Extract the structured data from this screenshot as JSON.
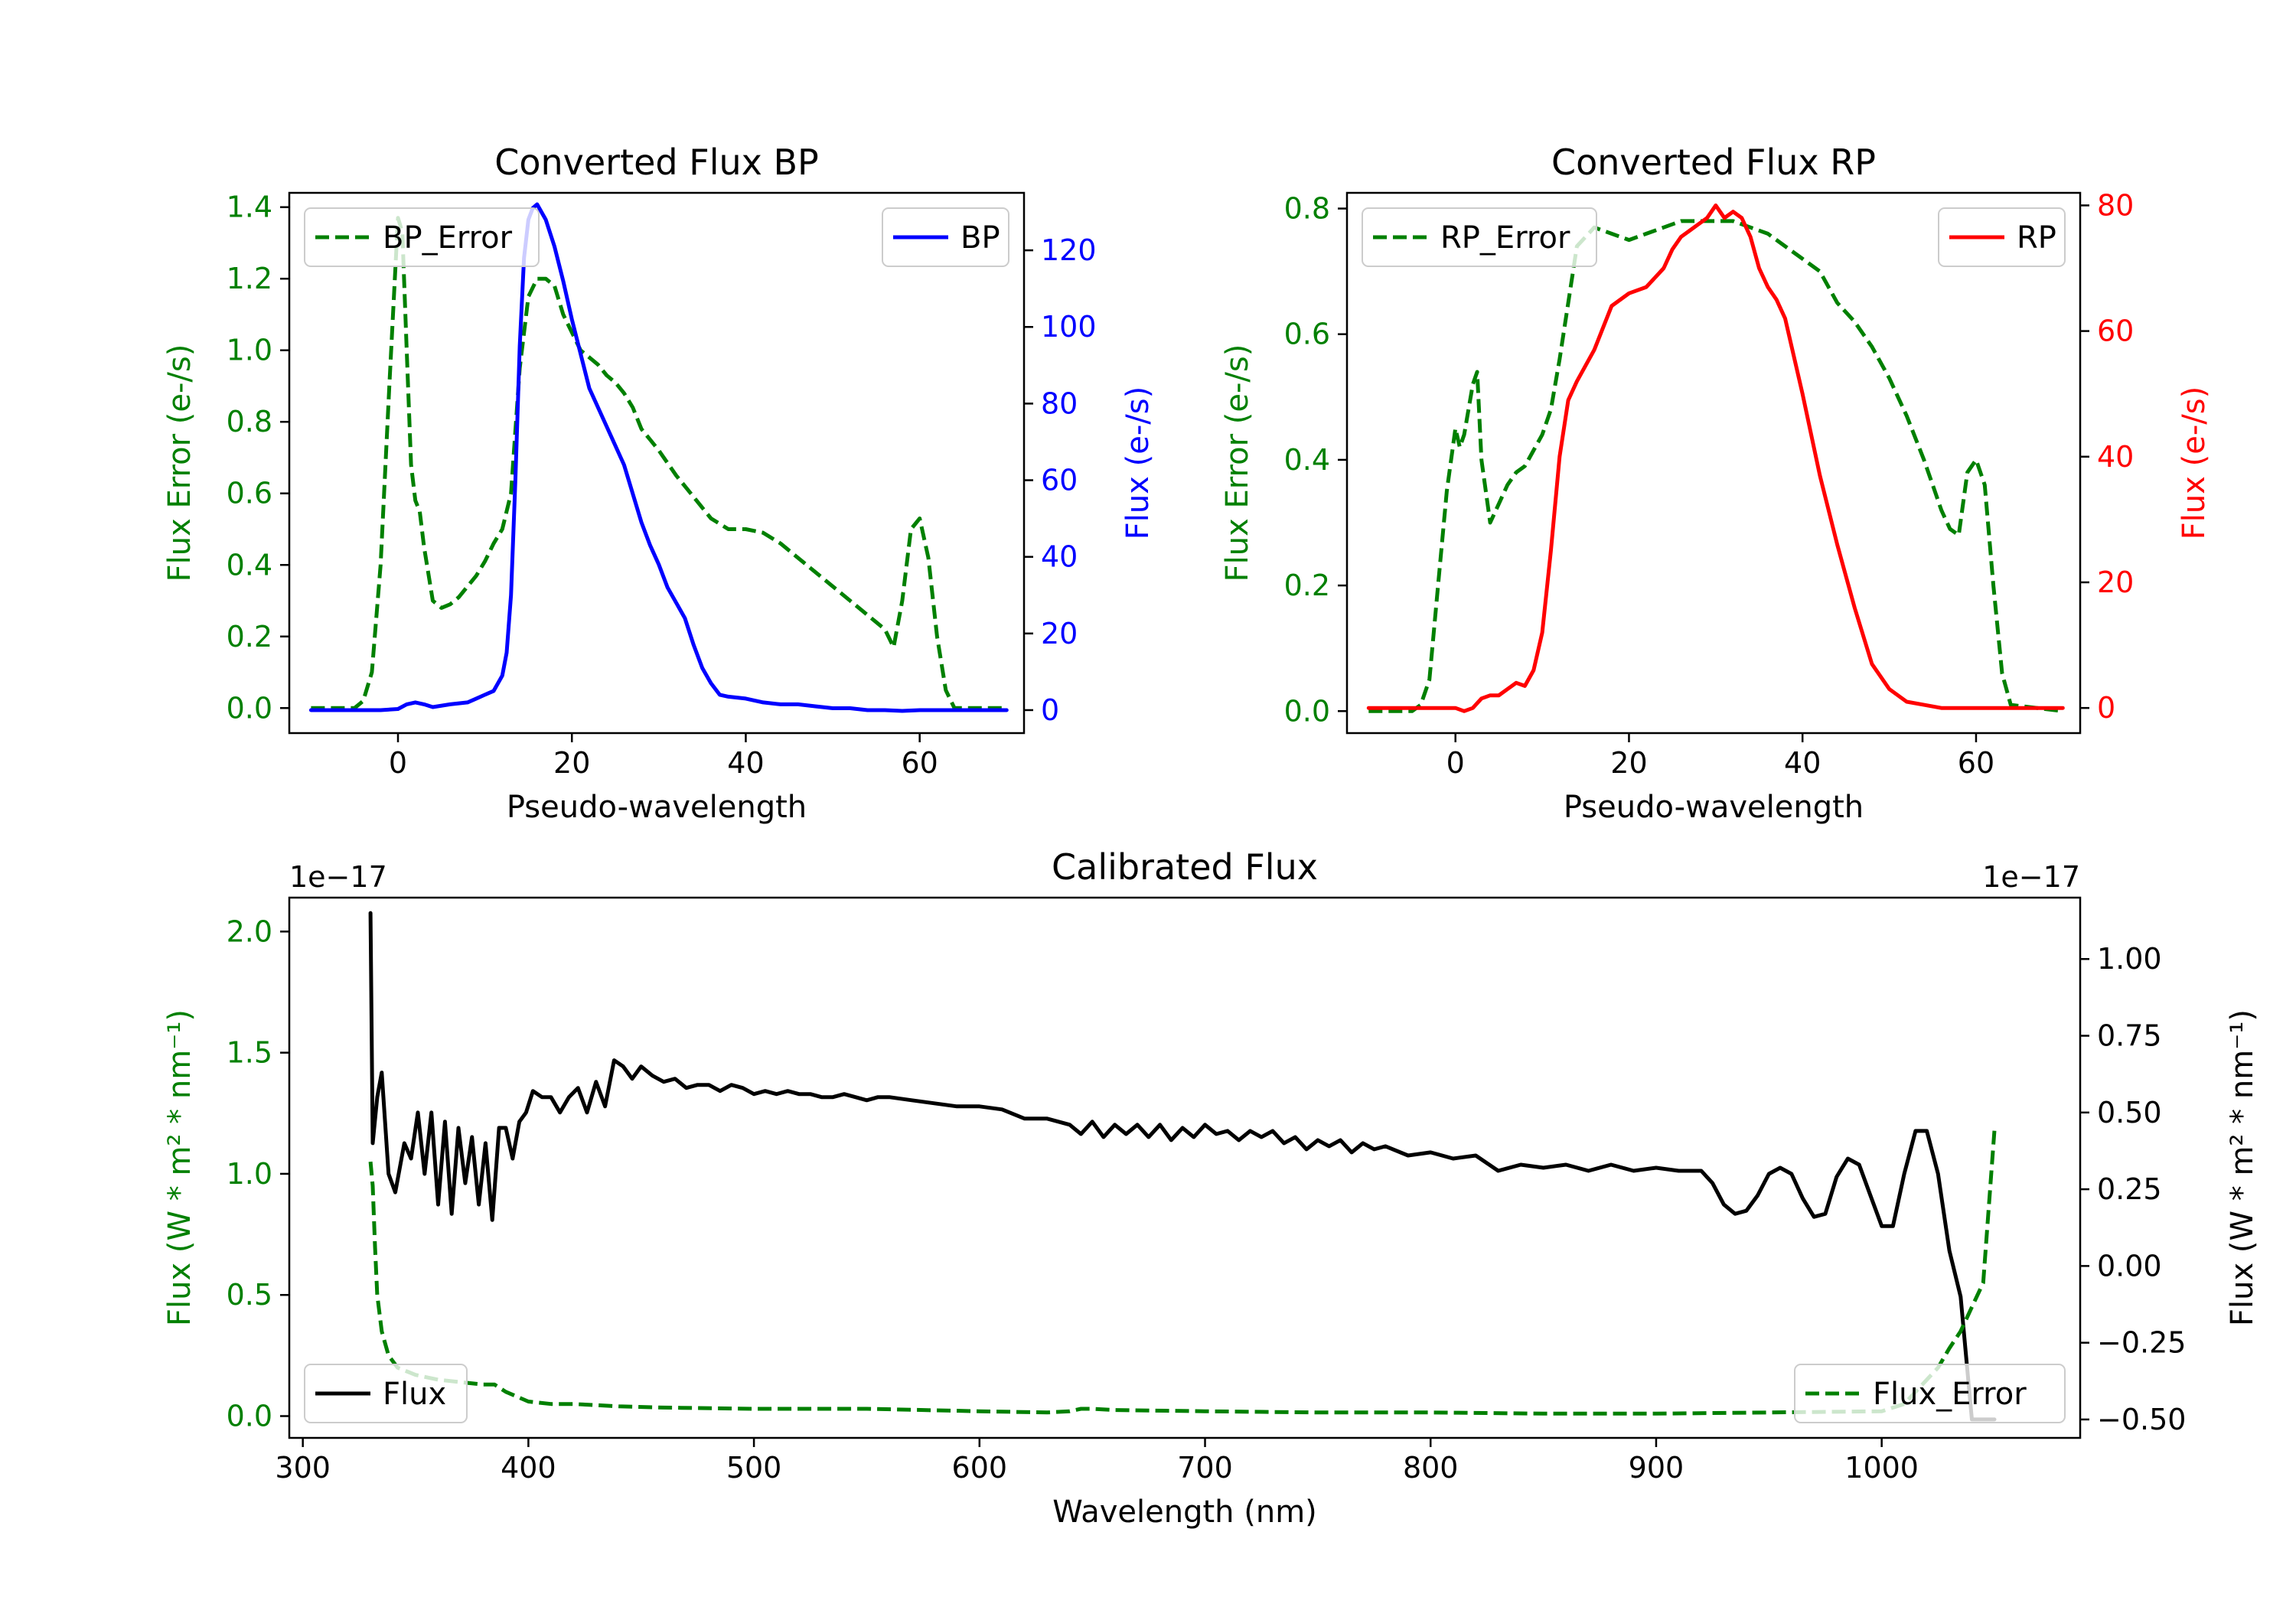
{
  "chart_data": [
    {
      "id": "bp",
      "type": "line",
      "title": "Converted Flux BP",
      "xlabel": "Pseudo-wavelength",
      "xlim": [
        -12.5,
        72
      ],
      "xticks": [
        0,
        20,
        40,
        60
      ],
      "y_left": {
        "label": "Flux Error (e-/s)",
        "color": "#008000",
        "lim": [
          -0.07,
          1.44
        ],
        "ticks": [
          0.0,
          0.2,
          0.4,
          0.6,
          0.8,
          1.0,
          1.2,
          1.4
        ],
        "decimals": 1
      },
      "y_right": {
        "label": "Flux (e-/s)",
        "color": "#0000ff",
        "lim": [
          -6,
          135
        ],
        "ticks": [
          0,
          20,
          40,
          60,
          80,
          100,
          120
        ],
        "decimals": 0
      },
      "series": [
        {
          "name": "BP_Error",
          "axis": "left",
          "color": "#008000",
          "dash": true,
          "x": [
            -10,
            -5,
            -4,
            -3,
            -2,
            -1,
            0,
            0.5,
            1,
            1.5,
            2,
            2.5,
            3,
            4,
            5,
            6,
            7,
            8,
            9,
            10,
            11,
            12,
            13,
            14,
            15,
            16,
            17,
            18,
            19,
            20,
            21,
            22,
            23,
            24,
            25,
            26,
            27,
            28,
            29,
            30,
            32,
            34,
            36,
            38,
            40,
            42,
            44,
            46,
            48,
            50,
            52,
            54,
            55,
            56,
            57,
            58,
            59,
            60,
            61,
            62,
            63,
            64,
            65,
            66,
            70
          ],
          "y": [
            0.0,
            0.0,
            0.02,
            0.1,
            0.4,
            0.9,
            1.37,
            1.33,
            1.0,
            0.68,
            0.58,
            0.55,
            0.45,
            0.3,
            0.28,
            0.29,
            0.31,
            0.34,
            0.37,
            0.41,
            0.46,
            0.5,
            0.6,
            0.95,
            1.15,
            1.2,
            1.2,
            1.18,
            1.1,
            1.05,
            1.0,
            0.98,
            0.96,
            0.93,
            0.91,
            0.88,
            0.84,
            0.78,
            0.75,
            0.72,
            0.65,
            0.59,
            0.53,
            0.5,
            0.5,
            0.49,
            0.46,
            0.42,
            0.38,
            0.34,
            0.3,
            0.26,
            0.24,
            0.22,
            0.17,
            0.3,
            0.5,
            0.53,
            0.42,
            0.2,
            0.05,
            0.0,
            0.0,
            0.0,
            0.0
          ]
        },
        {
          "name": "BP",
          "axis": "right",
          "color": "#0000ff",
          "dash": false,
          "x": [
            -10,
            -2,
            0,
            1,
            2,
            3,
            4,
            6,
            8,
            9,
            10,
            11,
            12,
            12.5,
            13,
            13.5,
            14,
            14.5,
            15,
            15.5,
            16,
            17,
            18,
            19,
            20,
            21,
            22,
            24,
            26,
            28,
            29,
            30,
            31,
            32,
            33,
            34,
            35,
            36,
            37,
            38,
            40,
            42,
            44,
            46,
            48,
            50,
            52,
            54,
            56,
            58,
            60,
            62,
            70
          ],
          "y": [
            0,
            0,
            0.3,
            1.5,
            2,
            1.5,
            0.8,
            1.5,
            2,
            3,
            4,
            5,
            9,
            15,
            30,
            60,
            95,
            118,
            128,
            131,
            132,
            128,
            121,
            112,
            102,
            93,
            84,
            74,
            64,
            49,
            43,
            38,
            32,
            28,
            24,
            17,
            11,
            7,
            4,
            3.5,
            3,
            2,
            1.5,
            1.5,
            1,
            0.5,
            0.5,
            0,
            0,
            -0.2,
            0,
            0,
            0
          ]
        }
      ],
      "legends": [
        {
          "position": "upper left",
          "label": "BP_Error"
        },
        {
          "position": "upper right",
          "label": "BP"
        }
      ]
    },
    {
      "id": "rp",
      "type": "line",
      "title": "Converted Flux RP",
      "xlabel": "Pseudo-wavelength",
      "xlim": [
        -12.5,
        72
      ],
      "xticks": [
        0,
        20,
        40,
        60
      ],
      "y_left": {
        "label": "Flux Error (e-/s)",
        "color": "#008000",
        "lim": [
          -0.035,
          0.825
        ],
        "ticks": [
          0.0,
          0.2,
          0.4,
          0.6,
          0.8
        ],
        "decimals": 1
      },
      "y_right": {
        "label": "Flux (e-/s)",
        "color": "#ff0000",
        "lim": [
          -4,
          82
        ],
        "ticks": [
          0,
          20,
          40,
          60,
          80
        ],
        "decimals": 0
      },
      "series": [
        {
          "name": "RP_Error",
          "axis": "left",
          "color": "#008000",
          "dash": true,
          "x": [
            -10,
            -5,
            -4,
            -3,
            -2,
            -1,
            0,
            0.5,
            1,
            2,
            2.5,
            3,
            4,
            5,
            6,
            7,
            8,
            10,
            11,
            12,
            13,
            14,
            16,
            18,
            20,
            22,
            24,
            26,
            28,
            30,
            32,
            34,
            36,
            38,
            40,
            42,
            44,
            46,
            48,
            50,
            52,
            54,
            55,
            56,
            57,
            58,
            59,
            60,
            61,
            62,
            63,
            64,
            70
          ],
          "y": [
            0.0,
            0.0,
            0.01,
            0.05,
            0.2,
            0.35,
            0.45,
            0.42,
            0.44,
            0.52,
            0.54,
            0.4,
            0.3,
            0.33,
            0.36,
            0.38,
            0.39,
            0.44,
            0.48,
            0.56,
            0.65,
            0.74,
            0.77,
            0.76,
            0.75,
            0.76,
            0.77,
            0.78,
            0.78,
            0.78,
            0.78,
            0.77,
            0.76,
            0.74,
            0.72,
            0.7,
            0.65,
            0.62,
            0.58,
            0.53,
            0.47,
            0.4,
            0.36,
            0.32,
            0.29,
            0.28,
            0.38,
            0.4,
            0.36,
            0.2,
            0.06,
            0.01,
            0.0
          ]
        },
        {
          "name": "RP",
          "axis": "right",
          "color": "#ff0000",
          "dash": false,
          "x": [
            -10,
            -4,
            -2,
            0,
            1,
            2,
            3,
            4,
            5,
            6,
            7,
            8,
            9,
            10,
            11,
            12,
            13,
            14,
            16,
            18,
            20,
            22,
            24,
            25,
            26,
            27,
            28,
            29,
            30,
            31,
            32,
            33,
            34,
            35,
            36,
            37,
            38,
            40,
            42,
            44,
            46,
            48,
            50,
            52,
            54,
            56,
            60,
            70
          ],
          "y": [
            0,
            0,
            0,
            0,
            -0.5,
            0,
            1.5,
            2,
            2,
            3,
            4,
            3.5,
            6,
            12,
            25,
            40,
            49,
            52,
            57,
            64,
            66,
            67,
            70,
            73,
            75,
            76,
            77,
            78,
            80,
            78,
            79,
            78,
            75,
            70,
            67,
            65,
            62,
            50,
            37,
            26,
            16,
            7,
            3,
            1,
            0.5,
            0,
            0,
            0
          ]
        }
      ],
      "legends": [
        {
          "position": "upper left",
          "label": "RP_Error"
        },
        {
          "position": "upper right",
          "label": "RP"
        }
      ]
    },
    {
      "id": "cal",
      "type": "line",
      "title": "Calibrated Flux",
      "xlabel": "Wavelength (nm)",
      "xlim": [
        294,
        1088
      ],
      "xticks": [
        300,
        400,
        500,
        600,
        700,
        800,
        900,
        1000
      ],
      "y_left": {
        "label": "Flux (W * m² * nm⁻¹)",
        "color": "#008000",
        "lim": [
          -0.09,
          2.14
        ],
        "ticks": [
          0.0,
          0.5,
          1.0,
          1.5,
          2.0
        ],
        "decimals": 1,
        "offset_text": "1e−17",
        "scale": "1e-17"
      },
      "y_right": {
        "label": "Flux (W * m² * nm⁻¹)",
        "color": "#000000",
        "lim": [
          -0.56,
          1.2
        ],
        "ticks": [
          -0.5,
          -0.25,
          0.0,
          0.25,
          0.5,
          0.75,
          1.0
        ],
        "decimals": 2,
        "offset_text": "1e−17",
        "scale": "1e-17"
      },
      "series": [
        {
          "name": "Flux",
          "axis": "right",
          "color": "#000000",
          "dash": false,
          "x": [
            330,
            331,
            333,
            335,
            338,
            341,
            345,
            348,
            351,
            354,
            357,
            360,
            363,
            366,
            369,
            372,
            375,
            378,
            381,
            384,
            387,
            390,
            393,
            396,
            399,
            402,
            406,
            410,
            414,
            418,
            422,
            426,
            430,
            434,
            438,
            442,
            446,
            450,
            455,
            460,
            465,
            470,
            475,
            480,
            485,
            490,
            495,
            500,
            505,
            510,
            515,
            520,
            525,
            530,
            535,
            540,
            545,
            550,
            555,
            560,
            570,
            580,
            590,
            600,
            610,
            620,
            630,
            640,
            645,
            650,
            655,
            660,
            665,
            670,
            675,
            680,
            685,
            690,
            695,
            700,
            705,
            710,
            715,
            720,
            725,
            730,
            735,
            740,
            745,
            750,
            755,
            760,
            765,
            770,
            775,
            780,
            790,
            800,
            810,
            820,
            830,
            840,
            850,
            860,
            870,
            880,
            890,
            900,
            910,
            920,
            925,
            930,
            935,
            940,
            945,
            950,
            955,
            960,
            965,
            970,
            975,
            980,
            985,
            990,
            995,
            1000,
            1005,
            1010,
            1015,
            1020,
            1025,
            1030,
            1035,
            1040,
            1050
          ],
          "y": [
            1.15,
            0.4,
            0.55,
            0.63,
            0.3,
            0.24,
            0.4,
            0.35,
            0.5,
            0.3,
            0.5,
            0.2,
            0.47,
            0.17,
            0.45,
            0.27,
            0.42,
            0.2,
            0.4,
            0.15,
            0.45,
            0.45,
            0.35,
            0.47,
            0.5,
            0.57,
            0.55,
            0.55,
            0.5,
            0.55,
            0.58,
            0.5,
            0.6,
            0.52,
            0.67,
            0.65,
            0.61,
            0.65,
            0.62,
            0.6,
            0.61,
            0.58,
            0.59,
            0.59,
            0.57,
            0.59,
            0.58,
            0.56,
            0.57,
            0.56,
            0.57,
            0.56,
            0.56,
            0.55,
            0.55,
            0.56,
            0.55,
            0.54,
            0.55,
            0.55,
            0.54,
            0.53,
            0.52,
            0.52,
            0.51,
            0.48,
            0.48,
            0.46,
            0.43,
            0.47,
            0.42,
            0.46,
            0.43,
            0.46,
            0.42,
            0.46,
            0.41,
            0.45,
            0.42,
            0.46,
            0.43,
            0.44,
            0.41,
            0.44,
            0.42,
            0.44,
            0.4,
            0.42,
            0.38,
            0.41,
            0.39,
            0.41,
            0.37,
            0.4,
            0.38,
            0.39,
            0.36,
            0.37,
            0.35,
            0.36,
            0.31,
            0.33,
            0.32,
            0.33,
            0.31,
            0.33,
            0.31,
            0.32,
            0.31,
            0.31,
            0.27,
            0.2,
            0.17,
            0.18,
            0.23,
            0.3,
            0.32,
            0.3,
            0.22,
            0.16,
            0.17,
            0.29,
            0.35,
            0.33,
            0.23,
            0.13,
            0.13,
            0.3,
            0.44,
            0.44,
            0.3,
            0.05,
            -0.1,
            -0.5,
            -0.5
          ]
        },
        {
          "name": "Flux_Error",
          "axis": "left",
          "color": "#008000",
          "dash": true,
          "x": [
            330,
            331,
            332,
            333,
            335,
            338,
            342,
            350,
            360,
            370,
            380,
            385,
            390,
            400,
            410,
            420,
            440,
            460,
            500,
            550,
            600,
            630,
            640,
            645,
            650,
            660,
            700,
            750,
            800,
            850,
            900,
            950,
            1000,
            1010,
            1020,
            1025,
            1030,
            1035,
            1040,
            1045,
            1050
          ],
          "y": [
            1.05,
            0.95,
            0.7,
            0.5,
            0.35,
            0.25,
            0.2,
            0.17,
            0.15,
            0.14,
            0.13,
            0.13,
            0.1,
            0.06,
            0.05,
            0.05,
            0.04,
            0.035,
            0.03,
            0.03,
            0.02,
            0.015,
            0.02,
            0.03,
            0.03,
            0.025,
            0.02,
            0.015,
            0.015,
            0.01,
            0.01,
            0.015,
            0.02,
            0.05,
            0.15,
            0.2,
            0.28,
            0.35,
            0.45,
            0.55,
            1.18
          ]
        }
      ],
      "legends": [
        {
          "position": "lower left",
          "label": "Flux"
        },
        {
          "position": "lower right",
          "label": "Flux_Error"
        }
      ]
    }
  ]
}
